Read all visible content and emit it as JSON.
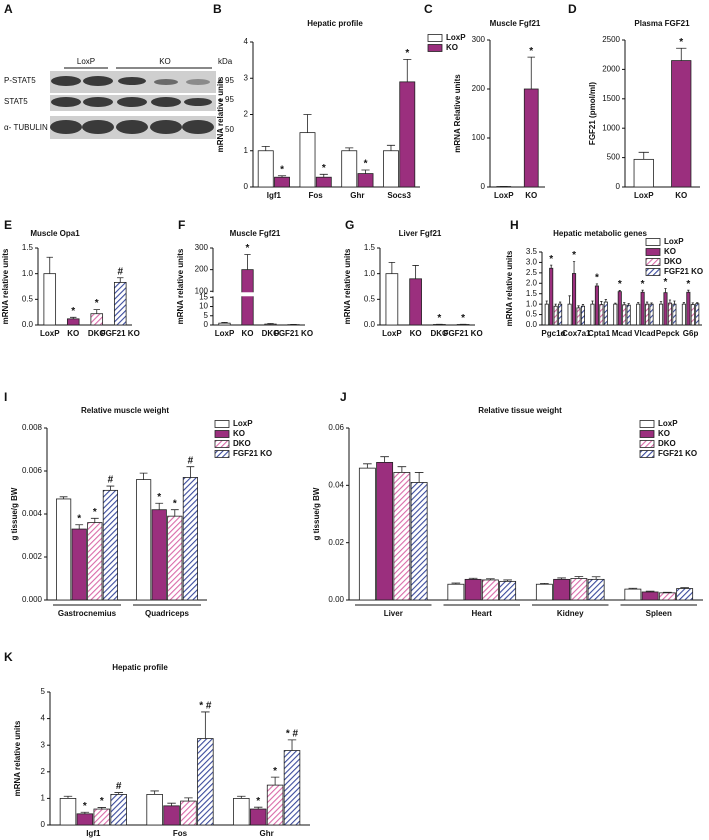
{
  "blot": {
    "panel": "A",
    "groups": [
      "LoxP",
      "KO"
    ],
    "unit": "kDa",
    "rows": [
      {
        "label": "P-STAT5",
        "kda": 95
      },
      {
        "label": "STAT5",
        "kda": 95
      },
      {
        "label": "α- TUBULIN",
        "kda": 50
      }
    ]
  },
  "chart_data": [
    {
      "panel": "B",
      "type": "bar",
      "title": "Hepatic profile",
      "ylabel": "mRNA relative units",
      "categories": [
        "Igf1",
        "Fos",
        "Ghr",
        "Socs3"
      ],
      "ylim": [
        0,
        4
      ],
      "yticks": [
        0,
        1,
        2,
        3,
        4
      ],
      "legend": "right",
      "series": [
        {
          "name": "LoxP",
          "color": "#ffffff",
          "pattern": "solid",
          "values": [
            1.0,
            1.5,
            1.0,
            1.0
          ],
          "errors": [
            0.12,
            0.5,
            0.08,
            0.15
          ]
        },
        {
          "name": "KO",
          "color": "#9b2f7e",
          "pattern": "solid",
          "values": [
            0.27,
            0.27,
            0.37,
            2.9
          ],
          "errors": [
            0.04,
            0.08,
            0.1,
            0.62
          ],
          "annotations": [
            "*",
            "*",
            "*",
            "*"
          ]
        }
      ]
    },
    {
      "panel": "C",
      "type": "bar",
      "title": "Muscle Fgf21",
      "ylabel": "mRNA Relative units",
      "categories": [
        "LoxP",
        "KO"
      ],
      "ylim": [
        0,
        300
      ],
      "yticks": [
        0,
        100,
        200,
        300
      ],
      "colors": [
        "#ffffff",
        "#9b2f7e"
      ],
      "patterns": [
        "solid",
        "solid"
      ],
      "values": [
        1,
        200
      ],
      "errors": [
        0.3,
        65
      ],
      "annotations": [
        null,
        "*"
      ]
    },
    {
      "panel": "D",
      "type": "bar",
      "title": "Plasma FGF21",
      "ylabel": "FGF21 (pmol/ml)",
      "categories": [
        "LoxP",
        "KO"
      ],
      "ylim": [
        0,
        2500
      ],
      "yticks": [
        0,
        500,
        1000,
        1500,
        2000,
        2500
      ],
      "colors": [
        "#ffffff",
        "#9b2f7e"
      ],
      "patterns": [
        "solid",
        "solid"
      ],
      "values": [
        470,
        2150
      ],
      "errors": [
        120,
        210
      ],
      "annotations": [
        null,
        "*"
      ]
    },
    {
      "panel": "E",
      "type": "bar",
      "title": "Muscle Opa1",
      "ylabel": "mRNA relative units",
      "categories": [
        "LoxP",
        "KO",
        "DKO",
        "FGF21 KO"
      ],
      "ylim": [
        0,
        1.5
      ],
      "yticks": [
        {
          "value": 0,
          "label": "0.0"
        },
        0.5,
        {
          "value": 1,
          "label": "1.0"
        },
        1.5
      ],
      "colors": [
        "#ffffff",
        "#9b2f7e",
        "#d96aa9",
        "#3a4a9c"
      ],
      "patterns": [
        "solid",
        "solid",
        "hatch",
        "hatch"
      ],
      "values": [
        1.0,
        0.12,
        0.22,
        0.83
      ],
      "errors": [
        0.32,
        0.03,
        0.08,
        0.09
      ],
      "annotations": [
        null,
        "*",
        "*",
        "#"
      ]
    },
    {
      "panel": "F",
      "type": "bar",
      "title": "Muscle Fgf21",
      "ylabel": "mRNA relative units",
      "categories": [
        "LoxP",
        "KO",
        "DKO",
        "FGF21 KO"
      ],
      "ylim": [
        0,
        300
      ],
      "ybreak": [
        15,
        100
      ],
      "yticks": [
        0,
        5,
        10,
        15,
        100,
        200,
        300
      ],
      "colors": [
        "#ffffff",
        "#9b2f7e",
        "#d96aa9",
        "#3a4a9c"
      ],
      "patterns": [
        "solid",
        "solid",
        "hatch",
        "hatch"
      ],
      "values": [
        1,
        200,
        0.5,
        0.2
      ],
      "errors": [
        0.4,
        70,
        0.3,
        0.1
      ],
      "annotations": [
        null,
        "*",
        null,
        null
      ]
    },
    {
      "panel": "G",
      "type": "bar",
      "title": "Liver Fgf21",
      "ylabel": "mRNA relative units",
      "categories": [
        "LoxP",
        "KO",
        "DKO",
        "FGF21 KO"
      ],
      "ylim": [
        0,
        1.5
      ],
      "yticks": [
        {
          "value": 0,
          "label": "0.0"
        },
        0.5,
        {
          "value": 1,
          "label": "1.0"
        },
        1.5
      ],
      "colors": [
        "#ffffff",
        "#9b2f7e",
        "#d96aa9",
        "#3a4a9c"
      ],
      "patterns": [
        "solid",
        "solid",
        "hatch",
        "hatch"
      ],
      "values": [
        1.0,
        0.9,
        0.01,
        0.01
      ],
      "errors": [
        0.22,
        0.26,
        0.005,
        0.005
      ],
      "annotations": [
        null,
        null,
        "*",
        "*"
      ]
    },
    {
      "panel": "H",
      "type": "bar",
      "title": "Hepatic metabolic genes",
      "ylabel": "mRNA relative units",
      "categories": [
        "Pgc1α",
        "Cox7a1",
        "Cpta1",
        "Mcad",
        "Vlcad",
        "Pepck",
        "G6p"
      ],
      "ylim": [
        0,
        3.5
      ],
      "yticks": [
        {
          "value": 0,
          "label": "0.0"
        },
        0.5,
        {
          "value": 1,
          "label": "1.0"
        },
        1.5,
        {
          "value": 2,
          "label": "2.0"
        },
        2.5,
        {
          "value": 3,
          "label": "3.0"
        },
        3.5
      ],
      "legend": "upper right",
      "series": [
        {
          "name": "LoxP",
          "color": "#ffffff",
          "pattern": "solid",
          "values": [
            1,
            1,
            1,
            1,
            1,
            1,
            1
          ],
          "errors": [
            0.15,
            0.4,
            0.15,
            0.05,
            0.08,
            0.12,
            0.08
          ]
        },
        {
          "name": "KO",
          "color": "#9b2f7e",
          "pattern": "solid",
          "values": [
            2.72,
            2.47,
            1.87,
            1.6,
            1.57,
            1.55,
            1.57
          ],
          "errors": [
            0.15,
            0.57,
            0.1,
            0.06,
            0.1,
            0.2,
            0.1
          ],
          "annotations": [
            "*",
            "*",
            "*",
            "*",
            "*",
            "*",
            "*"
          ]
        },
        {
          "name": "DKO",
          "color": "#d96aa9",
          "pattern": "hatch",
          "values": [
            0.9,
            0.82,
            0.98,
            0.97,
            1.0,
            1.05,
            0.98
          ],
          "errors": [
            0.1,
            0.1,
            0.15,
            0.1,
            0.1,
            0.15,
            0.08
          ]
        },
        {
          "name": "FGF21 KO",
          "color": "#3a4a9c",
          "pattern": "hatch",
          "values": [
            1.0,
            0.9,
            1.1,
            0.95,
            1.0,
            1.0,
            1.02
          ],
          "errors": [
            0.1,
            0.08,
            0.12,
            0.08,
            0.06,
            0.15,
            0.05
          ]
        }
      ]
    },
    {
      "panel": "I",
      "type": "bar",
      "title": "Relative muscle weight",
      "ylabel": "g tissue/g BW",
      "categories": [
        "Gastrocnemius",
        "Quadriceps"
      ],
      "ylim": [
        0,
        0.008
      ],
      "yticks": [
        {
          "value": 0,
          "label": "0.000"
        },
        0.002,
        0.004,
        0.006,
        0.008
      ],
      "legend": "right",
      "x_brackets": true,
      "series": [
        {
          "name": "LoxP",
          "color": "#ffffff",
          "pattern": "solid",
          "values": [
            0.0047,
            0.0056
          ],
          "errors": [
            0.0001,
            0.0003
          ]
        },
        {
          "name": "KO",
          "color": "#9b2f7e",
          "pattern": "solid",
          "values": [
            0.0033,
            0.0042
          ],
          "errors": [
            0.0002,
            0.0003
          ],
          "annotations": [
            "*",
            "*"
          ]
        },
        {
          "name": "DKO",
          "color": "#d96aa9",
          "pattern": "hatch",
          "values": [
            0.0036,
            0.0039
          ],
          "errors": [
            0.0002,
            0.0003
          ],
          "annotations": [
            "*",
            "*"
          ]
        },
        {
          "name": "FGF21 KO",
          "color": "#3a4a9c",
          "pattern": "hatch",
          "values": [
            0.0051,
            0.0057
          ],
          "errors": [
            0.0002,
            0.0005
          ],
          "annotations": [
            "#",
            "#"
          ]
        }
      ]
    },
    {
      "panel": "J",
      "type": "bar",
      "title": "Relative tissue weight",
      "ylabel": "g tissue/g BW",
      "categories": [
        "Liver",
        "Heart",
        "Kidney",
        "Spleen"
      ],
      "ylim": [
        0,
        0.06
      ],
      "yticks": [
        {
          "value": 0,
          "label": "0.00"
        },
        0.02,
        0.04,
        0.06
      ],
      "legend": "upper right",
      "x_brackets": true,
      "series": [
        {
          "name": "LoxP",
          "color": "#ffffff",
          "pattern": "solid",
          "values": [
            0.046,
            0.0055,
            0.0055,
            0.0038
          ],
          "errors": [
            0.0015,
            0.0004,
            0.0003,
            0.0003
          ]
        },
        {
          "name": "KO",
          "color": "#9b2f7e",
          "pattern": "solid",
          "values": [
            0.048,
            0.0072,
            0.0072,
            0.0028
          ],
          "errors": [
            0.002,
            0.0004,
            0.0005,
            0.0003
          ]
        },
        {
          "name": "DKO",
          "color": "#d96aa9",
          "pattern": "hatch",
          "values": [
            0.0445,
            0.007,
            0.0075,
            0.0025
          ],
          "errors": [
            0.002,
            0.0004,
            0.0007,
            0.0002
          ]
        },
        {
          "name": "FGF21 KO",
          "color": "#3a4a9c",
          "pattern": "hatch",
          "values": [
            0.041,
            0.0065,
            0.0072,
            0.004
          ],
          "errors": [
            0.0035,
            0.0005,
            0.0009,
            0.0003
          ]
        }
      ]
    },
    {
      "panel": "K",
      "type": "bar",
      "title": "Hepatic profile",
      "ylabel": "mRNA relative units",
      "categories": [
        "Igf1",
        "Fos",
        "Ghr"
      ],
      "ylim": [
        0,
        5
      ],
      "yticks": [
        0,
        1,
        2,
        3,
        4,
        5
      ],
      "series": [
        {
          "name": "LoxP",
          "color": "#ffffff",
          "pattern": "solid",
          "values": [
            1.0,
            1.15,
            1.0
          ],
          "errors": [
            0.08,
            0.13,
            0.08
          ]
        },
        {
          "name": "KO",
          "color": "#9b2f7e",
          "pattern": "solid",
          "values": [
            0.42,
            0.72,
            0.6
          ],
          "errors": [
            0.06,
            0.1,
            0.07
          ],
          "annotations": [
            "*",
            null,
            "*"
          ]
        },
        {
          "name": "DKO",
          "color": "#d96aa9",
          "pattern": "hatch",
          "values": [
            0.6,
            0.9,
            1.5
          ],
          "errors": [
            0.06,
            0.12,
            0.3
          ],
          "annotations": [
            "*",
            null,
            "*"
          ]
        },
        {
          "name": "FGF21 KO",
          "color": "#3a4a9c",
          "pattern": "hatch",
          "values": [
            1.15,
            3.25,
            2.8
          ],
          "errors": [
            0.07,
            1.0,
            0.4
          ],
          "annotations": [
            "#",
            "* #",
            "* #"
          ]
        }
      ]
    }
  ]
}
